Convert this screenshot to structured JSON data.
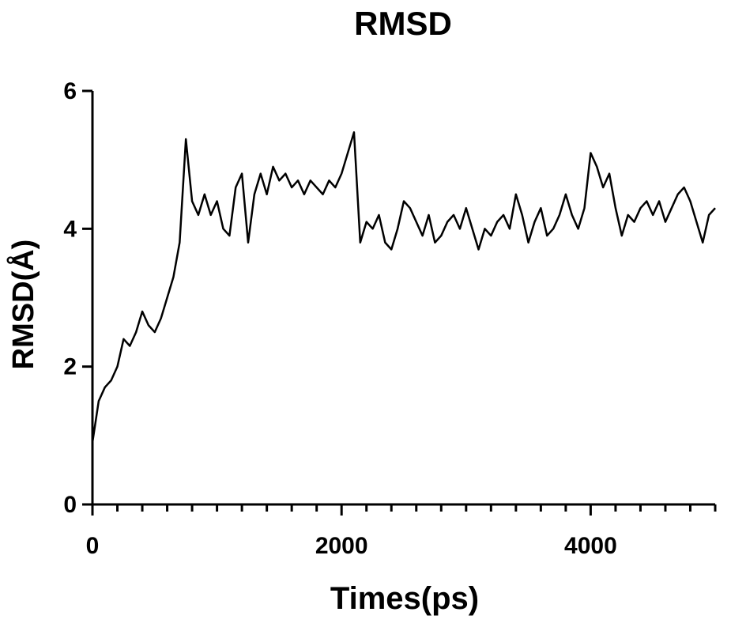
{
  "chart_data": {
    "type": "line",
    "title": "RMSD",
    "xlabel": "Times(ps)",
    "ylabel": "RMSD(Å)",
    "xlim": [
      0,
      5000
    ],
    "xticks": [
      0,
      2000,
      4000
    ],
    "xminorticks": [
      200,
      400,
      600,
      800,
      1000,
      1200,
      1400,
      1600,
      1800,
      2200,
      2400,
      2600,
      2800,
      3000,
      3200,
      3400,
      3600,
      3800,
      4200,
      4400,
      4600,
      4800,
      5000
    ],
    "ylim": [
      0,
      6
    ],
    "yticks": [
      0,
      2,
      4,
      6
    ],
    "x": [
      0,
      50,
      100,
      150,
      200,
      250,
      300,
      350,
      400,
      450,
      500,
      550,
      600,
      650,
      700,
      750,
      800,
      850,
      900,
      950,
      1000,
      1050,
      1100,
      1150,
      1200,
      1250,
      1300,
      1350,
      1400,
      1450,
      1500,
      1550,
      1600,
      1650,
      1700,
      1750,
      1800,
      1850,
      1900,
      1950,
      2000,
      2050,
      2100,
      2150,
      2200,
      2250,
      2300,
      2350,
      2400,
      2450,
      2500,
      2550,
      2600,
      2650,
      2700,
      2750,
      2800,
      2850,
      2900,
      2950,
      3000,
      3050,
      3100,
      3150,
      3200,
      3250,
      3300,
      3350,
      3400,
      3450,
      3500,
      3550,
      3600,
      3650,
      3700,
      3750,
      3800,
      3850,
      3900,
      3950,
      4000,
      4050,
      4100,
      4150,
      4200,
      4250,
      4300,
      4350,
      4400,
      4450,
      4500,
      4550,
      4600,
      4650,
      4700,
      4750,
      4800,
      4850,
      4900,
      4950,
      5000
    ],
    "series": [
      {
        "name": "RMSD",
        "color": "#000000",
        "values": [
          0.9,
          1.5,
          1.7,
          1.8,
          2.0,
          2.4,
          2.3,
          2.5,
          2.8,
          2.6,
          2.5,
          2.7,
          3.0,
          3.3,
          3.8,
          5.3,
          4.4,
          4.2,
          4.5,
          4.2,
          4.4,
          4.0,
          3.9,
          4.6,
          4.8,
          3.8,
          4.5,
          4.8,
          4.5,
          4.9,
          4.7,
          4.8,
          4.6,
          4.7,
          4.5,
          4.7,
          4.6,
          4.5,
          4.7,
          4.6,
          4.8,
          5.1,
          5.4,
          3.8,
          4.1,
          4.0,
          4.2,
          3.8,
          3.7,
          4.0,
          4.4,
          4.3,
          4.1,
          3.9,
          4.2,
          3.8,
          3.9,
          4.1,
          4.2,
          4.0,
          4.3,
          4.0,
          3.7,
          4.0,
          3.9,
          4.1,
          4.2,
          4.0,
          4.5,
          4.2,
          3.8,
          4.1,
          4.3,
          3.9,
          4.0,
          4.2,
          4.5,
          4.2,
          4.0,
          4.3,
          5.1,
          4.9,
          4.6,
          4.8,
          4.3,
          3.9,
          4.2,
          4.1,
          4.3,
          4.4,
          4.2,
          4.4,
          4.1,
          4.3,
          4.5,
          4.6,
          4.4,
          4.1,
          3.8,
          4.2,
          4.3
        ]
      }
    ]
  }
}
